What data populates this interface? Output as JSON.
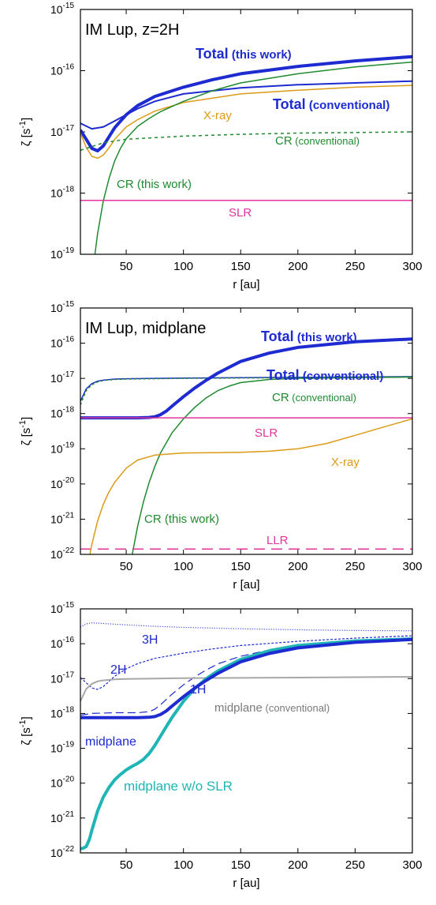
{
  "chart_data": [
    {
      "type": "line",
      "title": "IM Lup, z=2H",
      "xlabel": "r [au]",
      "ylabel_base": "ζ [s",
      "ylabel_exp": "-1",
      "ylabel_close": "]",
      "xlim": [
        10,
        300
      ],
      "ylim_log10": [
        -19,
        -15
      ],
      "x_ticks": [
        50,
        100,
        150,
        200,
        250,
        300
      ],
      "y_tick_base": "10",
      "y_ticks_exp": [
        -19,
        -18,
        -17,
        -16,
        -15
      ],
      "y_tick_labels": [
        "-19",
        "-18",
        "-17",
        "-16",
        "-15"
      ],
      "log_y": true,
      "grid": false,
      "annotations": [
        {
          "text": "Total",
          "note": "(this work)",
          "color": "#1e2bd0",
          "weight": "bold"
        },
        {
          "text": "Total",
          "note": "(conventional)",
          "color": "#1e2bd0",
          "weight": "bold"
        },
        {
          "text": "X-ray",
          "color": "#dc9a16"
        },
        {
          "text": "CR",
          "note": "(conventional)",
          "color": "#1f8a2f"
        },
        {
          "text": "CR (this work)",
          "color": "#1f8a2f"
        },
        {
          "text": "SLR",
          "color": "#e0359a"
        }
      ],
      "series": [
        {
          "color": "#1e2bd0",
          "width": 4,
          "dash": "",
          "x": [
            10,
            15,
            20,
            25,
            30,
            35,
            40,
            50,
            60,
            75,
            100,
            125,
            150,
            200,
            250,
            300
          ],
          "log10_y": [
            -16.97,
            -17.12,
            -17.27,
            -17.31,
            -17.23,
            -17.08,
            -16.93,
            -16.72,
            -16.57,
            -16.42,
            -16.27,
            -16.15,
            -16.05,
            -15.93,
            -15.84,
            -15.77
          ]
        },
        {
          "color": "#1e2bd0",
          "width": 2,
          "dash": "",
          "x": [
            10,
            20,
            30,
            40,
            50,
            60,
            75,
            100,
            150,
            200,
            250,
            300
          ],
          "log10_y": [
            -16.86,
            -16.95,
            -16.92,
            -16.82,
            -16.72,
            -16.62,
            -16.5,
            -16.38,
            -16.28,
            -16.23,
            -16.2,
            -16.17
          ]
        },
        {
          "color": "#dc9a16",
          "width": 1.5,
          "dash": "",
          "x": [
            10,
            15,
            20,
            25,
            30,
            35,
            40,
            50,
            60,
            75,
            100,
            150,
            200,
            250,
            300
          ],
          "log10_y": [
            -17.02,
            -17.25,
            -17.4,
            -17.43,
            -17.38,
            -17.26,
            -17.12,
            -16.92,
            -16.8,
            -16.66,
            -16.52,
            -16.38,
            -16.32,
            -16.27,
            -16.24
          ]
        },
        {
          "color": "#1f8a2f",
          "width": 1.5,
          "dash": "4,4",
          "x": [
            10,
            30,
            50,
            100,
            150,
            200,
            250,
            300
          ],
          "log10_y": [
            -17.3,
            -17.18,
            -17.12,
            -17.07,
            -17.04,
            -17.02,
            -17.01,
            -17.0
          ]
        },
        {
          "color": "#1f8a2f",
          "width": 1.5,
          "dash": "",
          "x": [
            22,
            25,
            30,
            35,
            40,
            45,
            50,
            60,
            70,
            80,
            100,
            125,
            150,
            200,
            250,
            300
          ],
          "log10_y": [
            -19.1,
            -18.66,
            -18.13,
            -17.76,
            -17.47,
            -17.27,
            -17.11,
            -16.91,
            -16.78,
            -16.67,
            -16.5,
            -16.33,
            -16.2,
            -16.05,
            -15.94,
            -15.86
          ]
        },
        {
          "color": "#e0359a",
          "width": 1.5,
          "dash": "",
          "x": [
            10,
            300
          ],
          "log10_y": [
            -18.12,
            -18.12
          ]
        }
      ]
    },
    {
      "type": "line",
      "title": "IM Lup, midplane",
      "xlabel": "r [au]",
      "ylabel_base": "ζ [s",
      "ylabel_exp": "-1",
      "ylabel_close": "]",
      "xlim": [
        10,
        300
      ],
      "ylim_log10": [
        -22,
        -15
      ],
      "x_ticks": [
        50,
        100,
        150,
        200,
        250,
        300
      ],
      "y_tick_base": "10",
      "y_ticks_exp": [
        -22,
        -21,
        -20,
        -19,
        -18,
        -17,
        -16,
        -15
      ],
      "y_tick_labels": [
        "-22",
        "-21",
        "-20",
        "-19",
        "-18",
        "-17",
        "-16",
        "-15"
      ],
      "log_y": true,
      "grid": false,
      "annotations": [
        {
          "text": "Total",
          "note": "(this work)",
          "color": "#1e2bd0",
          "weight": "bold"
        },
        {
          "text": "Total",
          "note": "(conventional)",
          "color": "#1e2bd0",
          "weight": "bold"
        },
        {
          "text": "CR",
          "note": "(conventional)",
          "color": "#1f8a2f"
        },
        {
          "text": "SLR",
          "color": "#e0359a"
        },
        {
          "text": "X-ray",
          "color": "#dc9a16"
        },
        {
          "text": "CR (this work)",
          "color": "#1f8a2f"
        },
        {
          "text": "LLR",
          "color": "#e0359a"
        }
      ],
      "series": [
        {
          "color": "#1e2bd0",
          "width": 1.5,
          "dash": "",
          "x": [
            10,
            15,
            20,
            25,
            30,
            40,
            50,
            75,
            100,
            150,
            200,
            250,
            300
          ],
          "log10_y": [
            -17.65,
            -17.3,
            -17.15,
            -17.08,
            -17.05,
            -17.02,
            -17.01,
            -17.0,
            -16.99,
            -16.98,
            -16.97,
            -16.96,
            -16.95
          ]
        },
        {
          "color": "#1f8a2f",
          "width": 1.5,
          "dash": "3,3",
          "x": [
            10,
            15,
            20,
            25,
            30,
            40,
            50,
            75,
            100,
            150,
            200,
            250,
            300
          ],
          "log10_y": [
            -17.75,
            -17.35,
            -17.18,
            -17.1,
            -17.06,
            -17.03,
            -17.02,
            -17.01,
            -17.0,
            -16.99,
            -16.98,
            -16.97,
            -16.96
          ]
        },
        {
          "color": "#1e2bd0",
          "width": 4,
          "dash": "",
          "x": [
            10,
            50,
            60,
            70,
            75,
            80,
            85,
            90,
            100,
            110,
            120,
            130,
            150,
            175,
            200,
            250,
            300
          ],
          "log10_y": [
            -18.12,
            -18.12,
            -18.12,
            -18.11,
            -18.09,
            -18.03,
            -17.93,
            -17.79,
            -17.52,
            -17.27,
            -17.05,
            -16.85,
            -16.52,
            -16.28,
            -16.12,
            -15.96,
            -15.88
          ]
        },
        {
          "color": "#1f8a2f",
          "width": 1.5,
          "dash": "",
          "x": [
            55,
            60,
            65,
            70,
            75,
            80,
            90,
            100,
            110,
            120,
            130,
            140,
            150,
            175,
            200,
            250,
            300
          ],
          "log10_y": [
            -22.05,
            -21.2,
            -20.52,
            -19.96,
            -19.5,
            -19.12,
            -18.55,
            -18.15,
            -17.82,
            -17.55,
            -17.35,
            -17.22,
            -17.12,
            -17.03,
            -17.0,
            -16.98,
            -16.96
          ]
        },
        {
          "color": "#e0359a",
          "width": 1.5,
          "dash": "",
          "x": [
            10,
            300
          ],
          "log10_y": [
            -18.12,
            -18.12
          ]
        },
        {
          "color": "#e0359a",
          "width": 1.5,
          "dash": "14,8",
          "x": [
            10,
            300
          ],
          "log10_y": [
            -21.85,
            -21.85
          ]
        },
        {
          "color": "#dc9a16",
          "width": 1.5,
          "dash": "",
          "x": [
            18,
            20,
            25,
            30,
            35,
            40,
            50,
            60,
            75,
            100,
            125,
            150,
            175,
            200,
            225,
            250,
            275,
            300
          ],
          "log10_y": [
            -22.05,
            -21.72,
            -21.05,
            -20.58,
            -20.22,
            -19.95,
            -19.55,
            -19.32,
            -19.18,
            -19.12,
            -19.11,
            -19.1,
            -19.07,
            -19.0,
            -18.85,
            -18.62,
            -18.38,
            -18.15
          ]
        }
      ]
    },
    {
      "type": "line",
      "title": "",
      "xlabel": "r [au]",
      "ylabel_base": "ζ [s",
      "ylabel_exp": "-1",
      "ylabel_close": "]",
      "xlim": [
        10,
        300
      ],
      "ylim_log10": [
        -22,
        -15
      ],
      "x_ticks": [
        50,
        100,
        150,
        200,
        250,
        300
      ],
      "y_tick_base": "10",
      "y_ticks_exp": [
        -22,
        -21,
        -20,
        -19,
        -18,
        -17,
        -16,
        -15
      ],
      "y_tick_labels": [
        "-22",
        "-21",
        "-20",
        "-19",
        "-18",
        "-17",
        "-16",
        "-15"
      ],
      "log_y": true,
      "grid": false,
      "annotations": [
        {
          "text": "3H",
          "color": "#1e2bd0"
        },
        {
          "text": "2H",
          "color": "#1e2bd0"
        },
        {
          "text": "1H",
          "color": "#1e2bd0"
        },
        {
          "text": "midplane",
          "note": "(conventional)",
          "color": "#7a7a7a"
        },
        {
          "text": "midplane",
          "color": "#1e2bd0"
        },
        {
          "text": "midplane w/o SLR",
          "color": "#1fb5b5"
        }
      ],
      "series": [
        {
          "color": "#1e2bd0",
          "width": 1.2,
          "dash": "1,2",
          "x": [
            10,
            15,
            20,
            30,
            50,
            75,
            100,
            150,
            200,
            250,
            300
          ],
          "log10_y": [
            -15.52,
            -15.43,
            -15.4,
            -15.42,
            -15.46,
            -15.5,
            -15.53,
            -15.57,
            -15.6,
            -15.62,
            -15.63
          ]
        },
        {
          "color": "#1e2bd0",
          "width": 1.2,
          "dash": "3,2",
          "x": [
            10,
            15,
            20,
            25,
            30,
            35,
            40,
            50,
            60,
            75,
            100,
            125,
            150,
            200,
            250,
            300
          ],
          "log10_y": [
            -16.97,
            -17.12,
            -17.27,
            -17.31,
            -17.23,
            -17.08,
            -16.93,
            -16.72,
            -16.57,
            -16.42,
            -16.27,
            -16.15,
            -16.05,
            -15.93,
            -15.84,
            -15.77
          ]
        },
        {
          "color": "#1e2bd0",
          "width": 1.2,
          "dash": "10,5",
          "x": [
            10,
            20,
            40,
            60,
            70,
            75,
            80,
            90,
            100,
            110,
            120,
            130,
            150,
            175,
            200,
            250,
            300
          ],
          "log10_y": [
            -18.05,
            -18.0,
            -17.98,
            -17.98,
            -17.95,
            -17.88,
            -17.75,
            -17.45,
            -17.18,
            -16.95,
            -16.75,
            -16.58,
            -16.36,
            -16.18,
            -16.06,
            -15.95,
            -15.88
          ]
        },
        {
          "color": "#a8a8a8",
          "width": 2,
          "dash": "",
          "x": [
            10,
            15,
            20,
            25,
            30,
            40,
            50,
            75,
            100,
            150,
            200,
            250,
            300
          ],
          "log10_y": [
            -17.65,
            -17.3,
            -17.15,
            -17.08,
            -17.05,
            -17.02,
            -17.01,
            -17.0,
            -16.99,
            -16.98,
            -16.97,
            -16.96,
            -16.95
          ]
        },
        {
          "color": "#1fb5b5",
          "width": 4,
          "dash": "",
          "x": [
            10,
            12,
            15,
            18,
            20,
            25,
            30,
            35,
            40,
            45,
            50,
            55,
            60,
            65,
            70,
            75,
            80,
            85,
            90,
            100,
            110,
            120,
            130,
            150,
            175,
            200,
            250,
            300
          ],
          "log10_y": [
            -21.88,
            -21.87,
            -21.82,
            -21.6,
            -21.35,
            -20.8,
            -20.4,
            -20.12,
            -19.9,
            -19.75,
            -19.62,
            -19.52,
            -19.43,
            -19.32,
            -19.15,
            -18.92,
            -18.65,
            -18.38,
            -18.12,
            -17.65,
            -17.28,
            -17.0,
            -16.78,
            -16.45,
            -16.2,
            -16.05,
            -15.92,
            -15.86
          ]
        },
        {
          "color": "#1e2bd0",
          "width": 4,
          "dash": "",
          "x": [
            10,
            50,
            60,
            70,
            75,
            80,
            85,
            90,
            100,
            110,
            120,
            130,
            150,
            175,
            200,
            250,
            300
          ],
          "log10_y": [
            -18.12,
            -18.12,
            -18.12,
            -18.11,
            -18.09,
            -18.03,
            -17.93,
            -17.79,
            -17.52,
            -17.27,
            -17.05,
            -16.85,
            -16.52,
            -16.28,
            -16.12,
            -15.96,
            -15.88
          ]
        }
      ]
    }
  ]
}
